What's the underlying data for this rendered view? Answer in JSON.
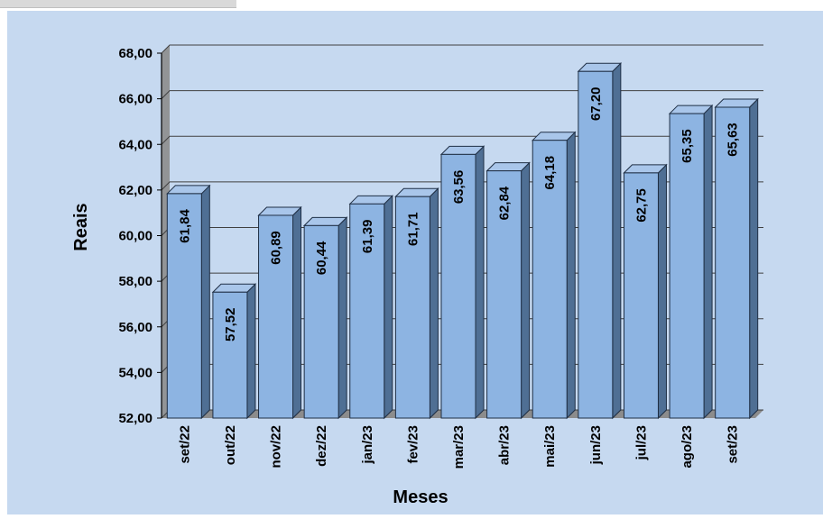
{
  "chart_data": {
    "type": "bar",
    "categories": [
      "set/22",
      "out/22",
      "nov/22",
      "dez/22",
      "jan/23",
      "fev/23",
      "mar/23",
      "abr/23",
      "mai/23",
      "jun/23",
      "jul/23",
      "ago/23",
      "set/23"
    ],
    "values": [
      61.84,
      57.52,
      60.89,
      60.44,
      61.39,
      61.71,
      63.56,
      62.84,
      64.18,
      67.2,
      62.75,
      65.35,
      65.63
    ],
    "value_labels": [
      "61,84",
      "57,52",
      "60,89",
      "60,44",
      "61,39",
      "61,71",
      "63,56",
      "62,84",
      "64,18",
      "67,20",
      "62,75",
      "65,35",
      "65,63"
    ],
    "yticks": [
      "52,00",
      "54,00",
      "56,00",
      "58,00",
      "60,00",
      "62,00",
      "64,00",
      "66,00",
      "68,00"
    ],
    "ylim": [
      52,
      68
    ],
    "xlabel": "Meses",
    "ylabel": "Reais",
    "grid": true,
    "legend": "none",
    "style": "3d",
    "colors": {
      "background": "#c6d9f0",
      "bar_front": "#8db4e2",
      "bar_side": "#4f6f94",
      "bar_top": "#a9c6ea",
      "bar_outline": "#1f2f45",
      "gridline": "#404040",
      "wall": "#8c8c8c"
    }
  }
}
